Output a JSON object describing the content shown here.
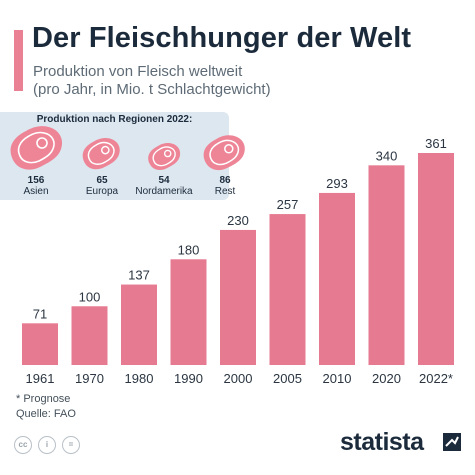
{
  "header": {
    "title": "Der Fleischhunger der Welt",
    "subtitle": "Produktion von Fleisch weltweit\n(pro Jahr, in Mio. t Schlachtgewicht)"
  },
  "regions": {
    "title": "Produktion nach Regionen 2022:",
    "items": [
      {
        "name": "Asien",
        "value": "156",
        "icon": "steak-icon"
      },
      {
        "name": "Europa",
        "value": "65",
        "icon": "steak-icon"
      },
      {
        "name": "Nordamerika",
        "value": "54",
        "icon": "steak-icon"
      },
      {
        "name": "Rest",
        "value": "86",
        "icon": "steak-icon"
      }
    ]
  },
  "chart_data": {
    "type": "bar",
    "categories": [
      "1961",
      "1970",
      "1980",
      "1990",
      "2000",
      "2005",
      "2010",
      "2020",
      "2022*"
    ],
    "values": [
      71,
      100,
      137,
      180,
      230,
      257,
      293,
      340,
      361
    ],
    "title": "Der Fleischhunger der Welt",
    "xlabel": "",
    "ylabel": "",
    "ylim": [
      0,
      361
    ],
    "bar_color": "#e67a90",
    "grid": false,
    "legend": "none"
  },
  "footer": {
    "note": "* Prognose",
    "source": "Quelle: FAO",
    "brand": "statista",
    "license_icons": [
      "cc-icon",
      "by-icon",
      "nd-icon"
    ]
  },
  "colors": {
    "accent": "#e98093",
    "bar": "#e67a90",
    "panel": "#dde7f0",
    "steak": "#ee8597",
    "text": "#1c2b3c"
  }
}
